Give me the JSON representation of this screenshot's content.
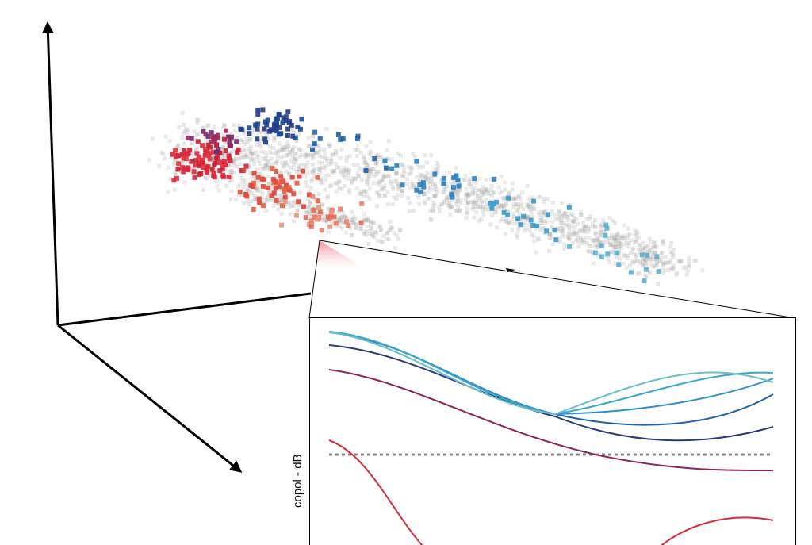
{
  "inset": {
    "y_label": "copol - dB"
  }
}
